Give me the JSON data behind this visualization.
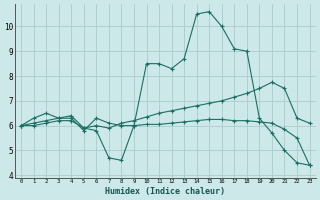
{
  "xlabel": "Humidex (Indice chaleur)",
  "ylabel": "",
  "background_color": "#cce8e8",
  "grid_color": "#aacccc",
  "line_color": "#1a6e65",
  "x_ticks": [
    0,
    1,
    2,
    3,
    4,
    5,
    6,
    7,
    8,
    9,
    10,
    11,
    12,
    13,
    14,
    15,
    16,
    17,
    18,
    19,
    20,
    21,
    22,
    23
  ],
  "y_ticks": [
    4,
    5,
    6,
    7,
    8,
    9,
    10
  ],
  "ylim": [
    3.9,
    10.9
  ],
  "xlim": [
    -0.5,
    23.5
  ],
  "series": [
    {
      "x": [
        0,
        1,
        2,
        3,
        4,
        5,
        6,
        7,
        8,
        9,
        10,
        11,
        12,
        13,
        14,
        15,
        16,
        17,
        18,
        19,
        20,
        21,
        22,
        23
      ],
      "y": [
        6.0,
        6.3,
        6.5,
        6.3,
        6.3,
        5.8,
        6.3,
        6.1,
        6.0,
        6.0,
        8.5,
        8.5,
        8.3,
        8.7,
        10.5,
        10.6,
        10.0,
        9.1,
        9.0,
        6.3,
        5.7,
        5.0,
        4.5,
        4.4
      ]
    },
    {
      "x": [
        0,
        1,
        2,
        3,
        4,
        5,
        6,
        7,
        8,
        9,
        10,
        11,
        12,
        13,
        14,
        15,
        16,
        17,
        18,
        19,
        20,
        21,
        22,
        23
      ],
      "y": [
        6.0,
        6.1,
        6.2,
        6.3,
        6.4,
        5.9,
        6.0,
        5.9,
        6.1,
        6.2,
        6.35,
        6.5,
        6.6,
        6.7,
        6.8,
        6.9,
        7.0,
        7.15,
        7.3,
        7.5,
        7.75,
        7.5,
        6.3,
        6.1
      ]
    },
    {
      "x": [
        0,
        1,
        2,
        3,
        4,
        5,
        6,
        7,
        8,
        9,
        10,
        11,
        12,
        13,
        14,
        15,
        16,
        17,
        18,
        19,
        20,
        21,
        22,
        23
      ],
      "y": [
        6.0,
        6.0,
        6.1,
        6.2,
        6.2,
        5.9,
        5.8,
        4.7,
        4.6,
        6.0,
        6.05,
        6.05,
        6.1,
        6.15,
        6.2,
        6.25,
        6.25,
        6.2,
        6.2,
        6.15,
        6.1,
        5.85,
        5.5,
        4.4
      ]
    }
  ]
}
